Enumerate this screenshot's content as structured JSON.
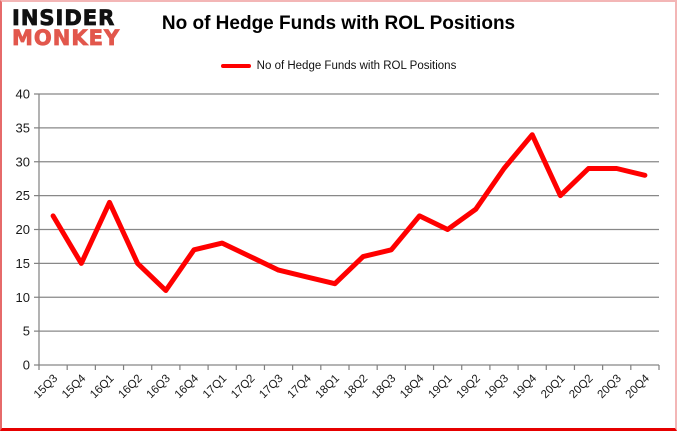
{
  "logo": {
    "line1": "INSIDER",
    "line2": "MONKEY",
    "line1_color": "#111111",
    "line2_color": "#e2574c"
  },
  "header": {
    "title": "No of Hedge Funds with ROL Positions"
  },
  "legend": {
    "items": [
      {
        "label": "No of Hedge Funds with ROL Positions",
        "color": "#ff0000"
      }
    ]
  },
  "chart_data": {
    "type": "line",
    "title": "No of Hedge Funds with ROL Positions",
    "categories": [
      "15Q3",
      "15Q4",
      "16Q1",
      "16Q2",
      "16Q3",
      "16Q4",
      "17Q1",
      "17Q2",
      "17Q3",
      "17Q4",
      "18Q1",
      "18Q2",
      "18Q3",
      "18Q4",
      "19Q1",
      "19Q2",
      "19Q3",
      "19Q4",
      "20Q1",
      "20Q2",
      "20Q3",
      "20Q4"
    ],
    "series": [
      {
        "name": "No of Hedge Funds with ROL Positions",
        "color": "#ff0000",
        "values": [
          22,
          15,
          24,
          15,
          11,
          17,
          18,
          16,
          14,
          13,
          12,
          16,
          17,
          22,
          20,
          23,
          29,
          34,
          25,
          29,
          29,
          28
        ]
      }
    ],
    "xlabel": "",
    "ylabel": "",
    "ylim": [
      0,
      40
    ],
    "ytick_step": 5,
    "grid": "horizontal",
    "gridline_color": "#888888",
    "axis_color": "#808080",
    "tick_label_color": "#1a1a1a",
    "legend_position": "top-center",
    "line_width": 5
  }
}
